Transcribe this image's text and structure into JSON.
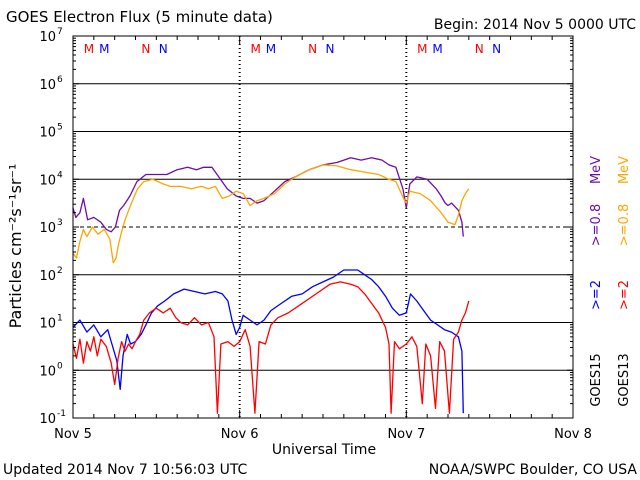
{
  "chart_data": {
    "type": "line",
    "title": "GOES Electron Flux (5 minute data)",
    "begin_label": "Begin: 2014 Nov 5 0000 UTC",
    "xlabel": "Universal Time",
    "ylabel": "Particles cm⁻²s⁻¹sr⁻¹",
    "x_unit": "hours since 2014 Nov 5 0000 UTC",
    "xlim": [
      0,
      72
    ],
    "x_ticks": [
      {
        "x": 0,
        "label": "Nov 5"
      },
      {
        "x": 24,
        "label": "Nov 6"
      },
      {
        "x": 48,
        "label": "Nov 7"
      },
      {
        "x": 72,
        "label": "Nov 8"
      }
    ],
    "y_scale": "log",
    "ylim_exp": [
      -1,
      7
    ],
    "y_ticks": [
      {
        "exp": -1,
        "base": "10",
        "sup": "-1"
      },
      {
        "exp": 0,
        "base": "10",
        "sup": "0"
      },
      {
        "exp": 1,
        "base": "10",
        "sup": "1"
      },
      {
        "exp": 2,
        "base": "10",
        "sup": "2"
      },
      {
        "exp": 3,
        "base": "10",
        "sup": "3"
      },
      {
        "exp": 4,
        "base": "10",
        "sup": "4"
      },
      {
        "exp": 5,
        "base": "10",
        "sup": "5"
      },
      {
        "exp": 6,
        "base": "10",
        "sup": "6"
      },
      {
        "exp": 7,
        "base": "10",
        "sup": "7"
      }
    ],
    "alert_threshold_exp": 3,
    "markers": [
      {
        "x": 2.3,
        "label": "M",
        "color": "#ff0000"
      },
      {
        "x": 4.5,
        "label": "M",
        "color": "#0000ff"
      },
      {
        "x": 10.5,
        "label": "N",
        "color": "#ff0000"
      },
      {
        "x": 13.0,
        "label": "N",
        "color": "#0000ff"
      },
      {
        "x": 26.3,
        "label": "M",
        "color": "#ff0000"
      },
      {
        "x": 28.5,
        "label": "M",
        "color": "#0000ff"
      },
      {
        "x": 34.5,
        "label": "N",
        "color": "#ff0000"
      },
      {
        "x": 37.0,
        "label": "N",
        "color": "#0000ff"
      },
      {
        "x": 50.3,
        "label": "M",
        "color": "#ff0000"
      },
      {
        "x": 52.5,
        "label": "M",
        "color": "#0000ff"
      },
      {
        "x": 58.5,
        "label": "N",
        "color": "#ff0000"
      },
      {
        "x": 61.0,
        "label": "N",
        "color": "#0000ff"
      }
    ],
    "right_labels": [
      {
        "text": "GOES15",
        "color": "#000000"
      },
      {
        "text": "GOES13",
        "color": "#000000"
      },
      {
        "text": ">=2",
        "color": "#0000ff"
      },
      {
        "text": ">=2",
        "color": "#ff0000"
      },
      {
        "text": ">=0.8",
        "color": "#6a0dad"
      },
      {
        "text": ">=0.8",
        "color": "#ffa500"
      },
      {
        "text": "MeV",
        "color": "#6a0dad"
      },
      {
        "text": "MeV",
        "color": "#ffa500"
      }
    ],
    "series": [
      {
        "name": "GOES15 >=0.8 MeV",
        "color": "#6a0dad",
        "points": [
          [
            0,
            3.4
          ],
          [
            0.4,
            3.2
          ],
          [
            1,
            3.3
          ],
          [
            1.5,
            3.6
          ],
          [
            2.1,
            3.15
          ],
          [
            3,
            3.2
          ],
          [
            4,
            3.1
          ],
          [
            4.8,
            2.95
          ],
          [
            5.5,
            2.9
          ],
          [
            6.1,
            3.0
          ],
          [
            6.7,
            3.35
          ],
          [
            7.3,
            3.45
          ],
          [
            8.2,
            3.65
          ],
          [
            9.2,
            3.95
          ],
          [
            10.5,
            4.1
          ],
          [
            12,
            4.1
          ],
          [
            13.5,
            4.1
          ],
          [
            15,
            4.2
          ],
          [
            16.5,
            4.25
          ],
          [
            17.8,
            4.2
          ],
          [
            18.8,
            4.25
          ],
          [
            20,
            4.25
          ],
          [
            21,
            4.05
          ],
          [
            22.2,
            3.8
          ],
          [
            23.5,
            3.65
          ],
          [
            24.5,
            3.6
          ],
          [
            25.5,
            3.6
          ],
          [
            26.5,
            3.5
          ],
          [
            27.5,
            3.55
          ],
          [
            29,
            3.75
          ],
          [
            30.5,
            3.95
          ],
          [
            32,
            4.05
          ],
          [
            34,
            4.2
          ],
          [
            36,
            4.3
          ],
          [
            38,
            4.35
          ],
          [
            40,
            4.45
          ],
          [
            41.5,
            4.4
          ],
          [
            43,
            4.45
          ],
          [
            44.5,
            4.4
          ],
          [
            45.5,
            4.3
          ],
          [
            46.5,
            4.25
          ],
          [
            47.5,
            3.8
          ],
          [
            48,
            3.4
          ],
          [
            48.5,
            3.9
          ],
          [
            49.5,
            4.05
          ],
          [
            51,
            4.0
          ],
          [
            52.3,
            3.8
          ],
          [
            53,
            3.65
          ],
          [
            53.6,
            3.5
          ],
          [
            54,
            3.45
          ],
          [
            54.5,
            3.5
          ],
          [
            55.5,
            3.35
          ],
          [
            56,
            3.1
          ],
          [
            56.2,
            2.8
          ]
        ]
      },
      {
        "name": "GOES13 >=0.8 MeV",
        "color": "#ffa500",
        "points": [
          [
            0,
            2.45
          ],
          [
            0.5,
            2.35
          ],
          [
            1,
            2.7
          ],
          [
            1.5,
            2.95
          ],
          [
            2,
            2.8
          ],
          [
            2.8,
            3.0
          ],
          [
            3.6,
            2.85
          ],
          [
            4.5,
            2.95
          ],
          [
            5.3,
            2.75
          ],
          [
            5.8,
            2.25
          ],
          [
            6.2,
            2.35
          ],
          [
            6.5,
            2.6
          ],
          [
            7,
            2.9
          ],
          [
            7.5,
            3.15
          ],
          [
            8,
            3.35
          ],
          [
            8.7,
            3.6
          ],
          [
            9.3,
            3.8
          ],
          [
            10.2,
            3.95
          ],
          [
            11.5,
            4.0
          ],
          [
            13,
            3.9
          ],
          [
            14,
            3.85
          ],
          [
            15.5,
            3.85
          ],
          [
            17,
            3.8
          ],
          [
            18.5,
            3.85
          ],
          [
            19.5,
            3.8
          ],
          [
            20.5,
            3.85
          ],
          [
            21.5,
            3.6
          ],
          [
            22.5,
            3.65
          ],
          [
            23.5,
            3.75
          ],
          [
            24.5,
            3.7
          ],
          [
            25.5,
            3.45
          ],
          [
            26.5,
            3.55
          ],
          [
            27.5,
            3.6
          ],
          [
            29,
            3.7
          ],
          [
            30.5,
            3.9
          ],
          [
            32,
            4.05
          ],
          [
            34,
            4.2
          ],
          [
            36,
            4.3
          ],
          [
            38,
            4.28
          ],
          [
            40,
            4.2
          ],
          [
            42,
            4.15
          ],
          [
            44,
            4.1
          ],
          [
            45.5,
            4.0
          ],
          [
            46.5,
            3.95
          ],
          [
            47.6,
            3.6
          ],
          [
            48,
            3.5
          ],
          [
            48.5,
            3.75
          ],
          [
            50,
            3.7
          ],
          [
            51.5,
            3.55
          ],
          [
            53,
            3.3
          ],
          [
            54,
            3.1
          ],
          [
            55,
            3.05
          ],
          [
            55.5,
            3.25
          ],
          [
            56,
            3.55
          ],
          [
            56.5,
            3.7
          ],
          [
            57,
            3.8
          ]
        ]
      },
      {
        "name": "GOES15 >=2 MeV",
        "color": "#0000ff",
        "points": [
          [
            0,
            0.9
          ],
          [
            1,
            1.05
          ],
          [
            2,
            0.8
          ],
          [
            3,
            0.95
          ],
          [
            4,
            0.7
          ],
          [
            5,
            0.85
          ],
          [
            5.6,
            0.55
          ],
          [
            6.3,
            0.2
          ],
          [
            6.8,
            -0.4
          ],
          [
            7.2,
            0.3
          ],
          [
            7.8,
            0.75
          ],
          [
            8.3,
            0.55
          ],
          [
            9,
            0.6
          ],
          [
            9.8,
            0.75
          ],
          [
            10.5,
            0.95
          ],
          [
            11.3,
            1.2
          ],
          [
            12.2,
            1.35
          ],
          [
            13.2,
            1.45
          ],
          [
            14.5,
            1.6
          ],
          [
            16,
            1.7
          ],
          [
            17.5,
            1.65
          ],
          [
            19,
            1.6
          ],
          [
            20.5,
            1.65
          ],
          [
            21.5,
            1.6
          ],
          [
            22.3,
            1.45
          ],
          [
            22.9,
            1.05
          ],
          [
            23.5,
            0.75
          ],
          [
            24,
            0.9
          ],
          [
            24.5,
            1.15
          ],
          [
            25.5,
            1.05
          ],
          [
            26.5,
            0.95
          ],
          [
            27.5,
            1.05
          ],
          [
            28.5,
            1.25
          ],
          [
            30,
            1.4
          ],
          [
            31.5,
            1.55
          ],
          [
            33,
            1.6
          ],
          [
            34.5,
            1.75
          ],
          [
            36,
            1.85
          ],
          [
            37.5,
            1.95
          ],
          [
            39,
            2.1
          ],
          [
            40,
            2.1
          ],
          [
            41,
            2.1
          ],
          [
            42,
            2.0
          ],
          [
            43,
            1.9
          ],
          [
            44,
            1.75
          ],
          [
            45,
            1.55
          ],
          [
            46,
            1.3
          ],
          [
            47,
            1.15
          ],
          [
            48,
            1.2
          ],
          [
            48.6,
            1.6
          ],
          [
            49.5,
            1.45
          ],
          [
            50.5,
            1.25
          ],
          [
            51.5,
            1.05
          ],
          [
            52.5,
            0.95
          ],
          [
            53.5,
            0.85
          ],
          [
            54.5,
            0.8
          ],
          [
            55.5,
            0.7
          ],
          [
            56,
            0.4
          ],
          [
            56.2,
            -0.9
          ]
        ]
      },
      {
        "name": "GOES13 >=2 MeV",
        "color": "#ff0000",
        "points": [
          [
            0,
            0.55
          ],
          [
            0.5,
            0.25
          ],
          [
            1,
            0.65
          ],
          [
            1.5,
            0.15
          ],
          [
            2,
            0.6
          ],
          [
            2.5,
            0.4
          ],
          [
            3,
            0.7
          ],
          [
            3.5,
            0.3
          ],
          [
            4,
            0.65
          ],
          [
            4.8,
            0.5
          ],
          [
            5.5,
            0.15
          ],
          [
            6,
            -0.3
          ],
          [
            6.5,
            0.25
          ],
          [
            7,
            0.6
          ],
          [
            7.5,
            0.4
          ],
          [
            8,
            0.55
          ],
          [
            8.5,
            0.45
          ],
          [
            9,
            0.6
          ],
          [
            9.6,
            0.75
          ],
          [
            10.2,
            1.05
          ],
          [
            11,
            1.2
          ],
          [
            12,
            1.3
          ],
          [
            13,
            1.2
          ],
          [
            14,
            1.3
          ],
          [
            14.8,
            1.1
          ],
          [
            15.5,
            1.0
          ],
          [
            16.5,
            0.95
          ],
          [
            17.5,
            1.1
          ],
          [
            18.5,
            0.95
          ],
          [
            19.5,
            1.0
          ],
          [
            20.3,
            0.7
          ],
          [
            20.8,
            -0.9
          ],
          [
            21.3,
            0.55
          ],
          [
            22.3,
            0.6
          ],
          [
            23.2,
            0.5
          ],
          [
            24,
            0.6
          ],
          [
            24.8,
            0.85
          ],
          [
            25.5,
            0.5
          ],
          [
            26.2,
            -0.9
          ],
          [
            26.8,
            0.6
          ],
          [
            27.7,
            0.55
          ],
          [
            28.5,
            0.95
          ],
          [
            29.5,
            1.1
          ],
          [
            31,
            1.2
          ],
          [
            32.5,
            1.35
          ],
          [
            34,
            1.5
          ],
          [
            35.5,
            1.65
          ],
          [
            37,
            1.8
          ],
          [
            38.5,
            1.85
          ],
          [
            40,
            1.8
          ],
          [
            41,
            1.75
          ],
          [
            42,
            1.6
          ],
          [
            43,
            1.4
          ],
          [
            44,
            1.2
          ],
          [
            45,
            0.9
          ],
          [
            45.5,
            0.55
          ],
          [
            45.8,
            -0.9
          ],
          [
            46.3,
            0.6
          ],
          [
            47,
            0.45
          ],
          [
            48,
            0.55
          ],
          [
            48.8,
            0.7
          ],
          [
            49.5,
            0.5
          ],
          [
            50.3,
            -0.7
          ],
          [
            50.8,
            0.55
          ],
          [
            51.5,
            0.3
          ],
          [
            52.2,
            -0.8
          ],
          [
            52.8,
            0.6
          ],
          [
            53.5,
            0.4
          ],
          [
            54.2,
            -0.9
          ],
          [
            54.8,
            0.65
          ],
          [
            55.5,
            0.8
          ],
          [
            56,
            1.05
          ],
          [
            56.5,
            1.2
          ],
          [
            57,
            1.45
          ]
        ]
      }
    ]
  },
  "footer": {
    "updated": "Updated 2014 Nov  7 10:56:03 UTC",
    "credit": "NOAA/SWPC Boulder, CO USA"
  }
}
